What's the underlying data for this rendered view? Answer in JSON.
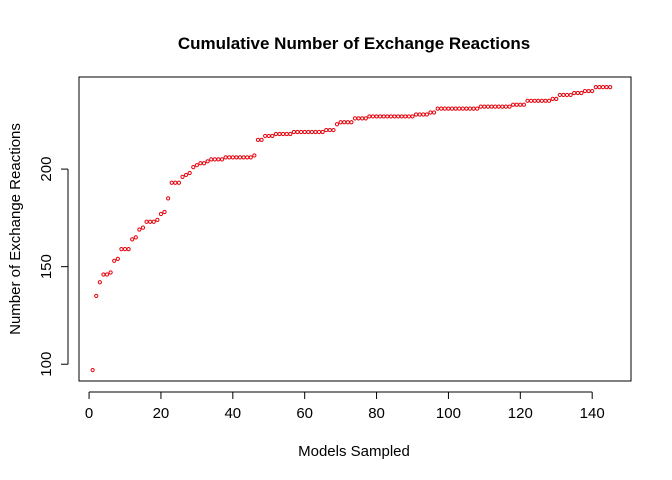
{
  "chart_data": {
    "type": "scatter",
    "title": "Cumulative Number of Exchange Reactions",
    "xlabel": "Models Sampled",
    "ylabel": "Number of Exchange Reactions",
    "xlim": [
      -2.8,
      150.8
    ],
    "ylim": [
      91.4,
      247.2
    ],
    "xticks": [
      0,
      20,
      40,
      60,
      80,
      100,
      120,
      140
    ],
    "yticks": [
      100,
      150,
      200
    ],
    "grid": false,
    "legend": "none",
    "point_color": "#e8000b",
    "x": [
      1,
      2,
      3,
      4,
      5,
      6,
      7,
      8,
      9,
      10,
      11,
      12,
      13,
      14,
      15,
      16,
      17,
      18,
      19,
      20,
      21,
      22,
      23,
      24,
      25,
      26,
      27,
      28,
      29,
      30,
      31,
      32,
      33,
      34,
      35,
      36,
      37,
      38,
      39,
      40,
      41,
      42,
      43,
      44,
      45,
      46,
      47,
      48,
      49,
      50,
      51,
      52,
      53,
      54,
      55,
      56,
      57,
      58,
      59,
      60,
      61,
      62,
      63,
      64,
      65,
      66,
      67,
      68,
      69,
      70,
      71,
      72,
      73,
      74,
      75,
      76,
      77,
      78,
      79,
      80,
      81,
      82,
      83,
      84,
      85,
      86,
      87,
      88,
      89,
      90,
      91,
      92,
      93,
      94,
      95,
      96,
      97,
      98,
      99,
      100,
      101,
      102,
      103,
      104,
      105,
      106,
      107,
      108,
      109,
      110,
      111,
      112,
      113,
      114,
      115,
      116,
      117,
      118,
      119,
      120,
      121,
      122,
      123,
      124,
      125,
      126,
      127,
      128,
      129,
      130,
      131,
      132,
      133,
      134,
      135,
      136,
      137,
      138,
      139,
      140,
      141,
      142,
      143,
      144,
      145
    ],
    "y": [
      97,
      135,
      142,
      146,
      146,
      147,
      153,
      154,
      159,
      159,
      159,
      164,
      165,
      169,
      170,
      173,
      173,
      173,
      174,
      177,
      178,
      185,
      193,
      193,
      193,
      196,
      197,
      198,
      201,
      202,
      203,
      203,
      204,
      205,
      205,
      205,
      205,
      206,
      206,
      206,
      206,
      206,
      206,
      206,
      206,
      207,
      215,
      215,
      217,
      217,
      217,
      218,
      218,
      218,
      218,
      218,
      219,
      219,
      219,
      219,
      219,
      219,
      219,
      219,
      219,
      220,
      220,
      220,
      223,
      224,
      224,
      224,
      224,
      226,
      226,
      226,
      226,
      227,
      227,
      227,
      227,
      227,
      227,
      227,
      227,
      227,
      227,
      227,
      227,
      227,
      228,
      228,
      228,
      228,
      229,
      229,
      231,
      231,
      231,
      231,
      231,
      231,
      231,
      231,
      231,
      231,
      231,
      231,
      232,
      232,
      232,
      232,
      232,
      232,
      232,
      232,
      232,
      233,
      233,
      233,
      233,
      235,
      235,
      235,
      235,
      235,
      235,
      235,
      236,
      236,
      238,
      238,
      238,
      238,
      239,
      239,
      239,
      240,
      240,
      240,
      242,
      242,
      242,
      242,
      242
    ]
  }
}
